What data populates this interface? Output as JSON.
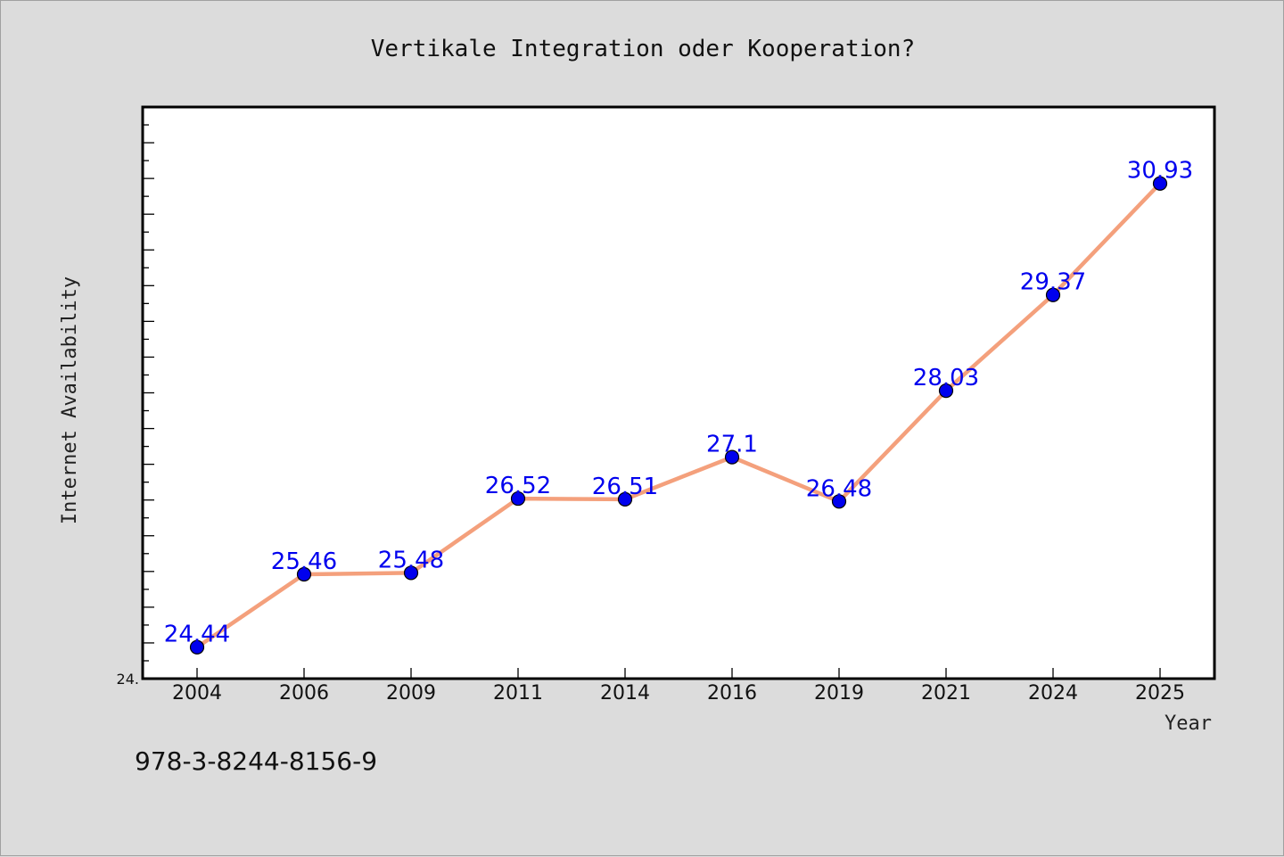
{
  "chart_data": {
    "type": "line",
    "title": "Vertikale Integration oder Kooperation?",
    "xlabel": "Year",
    "ylabel": "Internet Availability",
    "categories": [
      "2004",
      "2006",
      "2009",
      "2011",
      "2014",
      "2016",
      "2019",
      "2021",
      "2024",
      "2025"
    ],
    "series": [
      {
        "values": [
          24.44,
          25.46,
          25.48,
          26.52,
          26.51,
          27.1,
          26.48,
          28.03,
          29.37,
          30.93
        ],
        "labels": [
          "24.44",
          "25.46",
          "25.48",
          "26.52",
          "26.51",
          "27.1",
          "26.48",
          "28.03",
          "29.37",
          "30.93"
        ],
        "line_color": "#f4a07c",
        "marker_color": "#0000ee"
      }
    ],
    "y_tick_labels": [
      {
        "value": 24.0,
        "label": "24."
      }
    ],
    "ylim": [
      24.0,
      32.0
    ],
    "y_minor_step": 0.25,
    "y_major_step": 0.5,
    "grid": false,
    "legend": "none"
  },
  "footer": {
    "isbn": "978-3-8244-8156-9"
  },
  "colors": {
    "background": "#dcdcdc",
    "plot_background": "#ffffff",
    "axis": "#000000"
  }
}
